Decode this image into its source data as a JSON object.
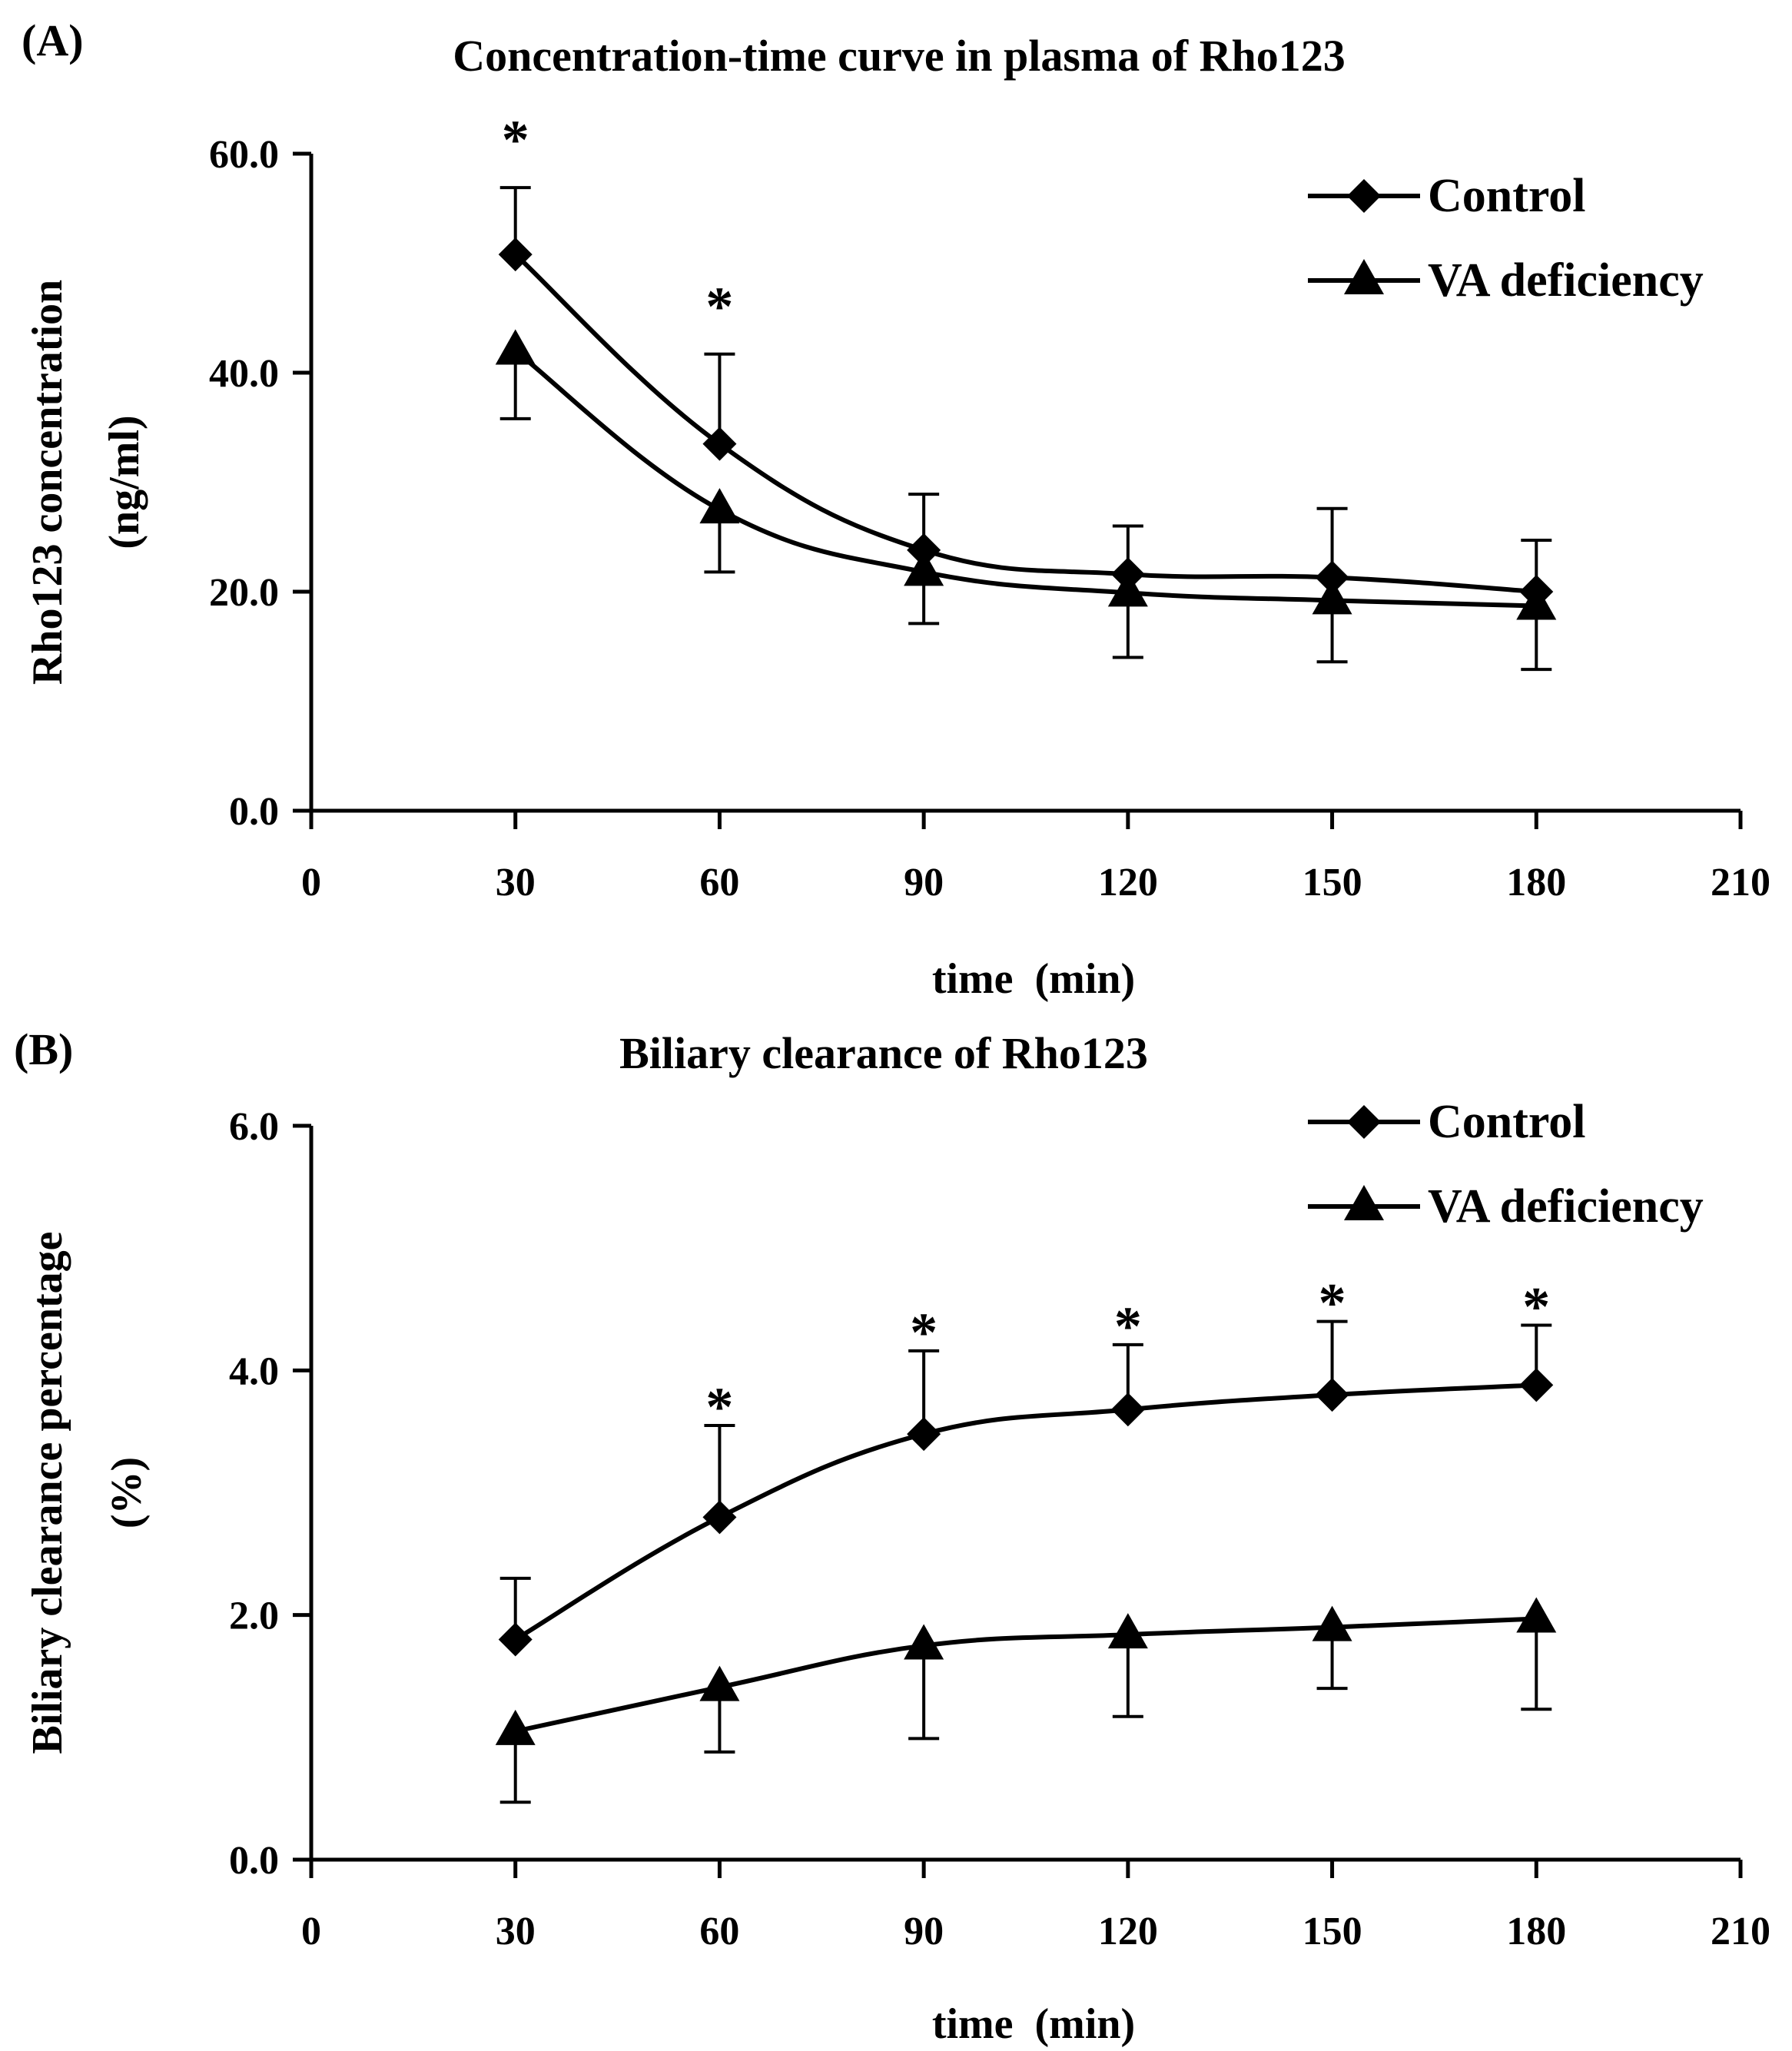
{
  "chart_data": [
    {
      "panel_label": "(A)",
      "type": "line",
      "title": "Concentration-time curve in plasma of Rho123",
      "xlabel": "time  (min)",
      "ylabel": "Rho123 concentration",
      "ylabel_unit": "(ng/ml)",
      "xlim": [
        0,
        210
      ],
      "ylim": [
        0,
        60
      ],
      "xticks": [
        0,
        30,
        60,
        90,
        120,
        150,
        180,
        210
      ],
      "xtick_labels": [
        "0",
        "30",
        "60",
        "90",
        "120",
        "150",
        "180",
        "210"
      ],
      "yticks": [
        0,
        20,
        40,
        60
      ],
      "ytick_labels": [
        "0.0",
        "20.0",
        "40.0",
        "60.0"
      ],
      "x": [
        30,
        60,
        90,
        120,
        150,
        180
      ],
      "series": [
        {
          "name": "Control",
          "marker": "diamond",
          "values": [
            50.8,
            33.5,
            23.8,
            21.6,
            21.3,
            20.0
          ],
          "error_up": [
            6.1,
            8.2,
            5.1,
            4.4,
            6.3,
            4.7
          ],
          "error_down": [
            0,
            0,
            0,
            0,
            0,
            0
          ]
        },
        {
          "name": "VA deficiency",
          "marker": "triangle",
          "values": [
            42.0,
            27.5,
            21.8,
            19.9,
            19.2,
            18.7
          ],
          "error_up": [
            0,
            0,
            0,
            0,
            0,
            0
          ],
          "error_down": [
            6.2,
            5.7,
            4.7,
            5.9,
            5.6,
            5.8
          ]
        }
      ],
      "significance": {
        "symbol": "*",
        "x": [
          30,
          60
        ]
      },
      "legend": "top-right"
    },
    {
      "panel_label": "(B)",
      "type": "line",
      "title": "Biliary clearance of Rho123",
      "xlabel": "time  (min)",
      "ylabel": "Biliary clearance percentage",
      "ylabel_unit": "(%)",
      "xlim": [
        0,
        210
      ],
      "ylim": [
        0,
        6
      ],
      "xticks": [
        0,
        30,
        60,
        90,
        120,
        150,
        180,
        210
      ],
      "xtick_labels": [
        "0",
        "30",
        "60",
        "90",
        "120",
        "150",
        "180",
        "210"
      ],
      "yticks": [
        0,
        2,
        4,
        6
      ],
      "ytick_labels": [
        "0.0",
        "2.0",
        "4.0",
        "6.0"
      ],
      "x": [
        30,
        60,
        90,
        120,
        150,
        180
      ],
      "series": [
        {
          "name": "Control",
          "marker": "diamond",
          "values": [
            1.8,
            2.8,
            3.48,
            3.68,
            3.8,
            3.88
          ],
          "error_up": [
            0.5,
            0.75,
            0.68,
            0.53,
            0.6,
            0.49
          ],
          "error_down": [
            0,
            0,
            0,
            0,
            0,
            0
          ]
        },
        {
          "name": "VA deficiency",
          "marker": "triangle",
          "values": [
            1.05,
            1.41,
            1.75,
            1.84,
            1.9,
            1.97
          ],
          "error_up": [
            0,
            0,
            0,
            0,
            0,
            0
          ],
          "error_down": [
            0.58,
            0.53,
            0.76,
            0.67,
            0.5,
            0.74
          ]
        }
      ],
      "significance": {
        "symbol": "*",
        "x": [
          60,
          90,
          120,
          150,
          180
        ]
      },
      "legend": "top-right"
    }
  ]
}
